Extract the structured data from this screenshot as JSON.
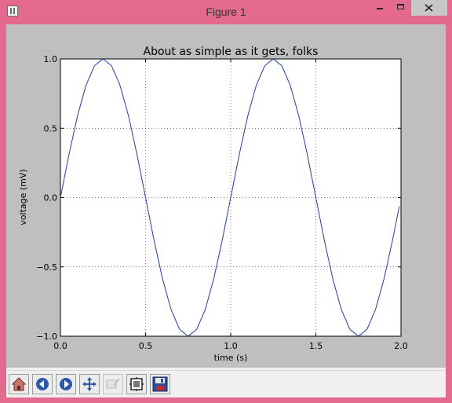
{
  "window": {
    "title": "Figure 1"
  },
  "toolbar": {
    "buttons": [
      {
        "name": "home-button",
        "icon": "home-icon"
      },
      {
        "name": "back-button",
        "icon": "back-arrow-icon"
      },
      {
        "name": "forward-button",
        "icon": "forward-arrow-icon"
      },
      {
        "name": "pan-button",
        "icon": "pan-arrows-icon"
      },
      {
        "name": "zoom-button",
        "icon": "zoom-rect-icon"
      },
      {
        "name": "subplots-button",
        "icon": "subplots-icon"
      },
      {
        "name": "save-button",
        "icon": "floppy-disk-icon"
      }
    ]
  },
  "chart_data": {
    "type": "line",
    "title": "About as simple as it gets, folks",
    "xlabel": "time (s)",
    "ylabel": "voltage (mV)",
    "xlim": [
      0.0,
      2.0
    ],
    "ylim": [
      -1.0,
      1.0
    ],
    "xticks": [
      "0.0",
      "0.5",
      "1.0",
      "1.5",
      "2.0"
    ],
    "yticks": [
      "1.0",
      "0.5",
      "0.0",
      "−0.5",
      "−1.0"
    ],
    "grid": true,
    "line_color": "#1f3f9f",
    "series": [
      {
        "x": [
          0.0,
          0.05,
          0.1,
          0.15,
          0.2,
          0.25,
          0.3,
          0.35,
          0.4,
          0.45,
          0.5,
          0.55,
          0.6,
          0.65,
          0.7,
          0.75,
          0.8,
          0.85,
          0.9,
          0.95,
          1.0,
          1.05,
          1.1,
          1.15,
          1.2,
          1.25,
          1.3,
          1.35,
          1.4,
          1.45,
          1.5,
          1.55,
          1.6,
          1.65,
          1.7,
          1.75,
          1.8,
          1.85,
          1.9,
          1.95,
          1.99
        ],
        "y": [
          0.0,
          0.309,
          0.588,
          0.809,
          0.951,
          1.0,
          0.951,
          0.809,
          0.588,
          0.309,
          0.0,
          -0.309,
          -0.588,
          -0.809,
          -0.951,
          -1.0,
          -0.951,
          -0.809,
          -0.588,
          -0.309,
          0.0,
          0.309,
          0.588,
          0.809,
          0.951,
          1.0,
          0.951,
          0.809,
          0.588,
          0.309,
          0.0,
          -0.309,
          -0.588,
          -0.809,
          -0.951,
          -1.0,
          -0.951,
          -0.809,
          -0.588,
          -0.309,
          -0.063
        ]
      }
    ]
  }
}
